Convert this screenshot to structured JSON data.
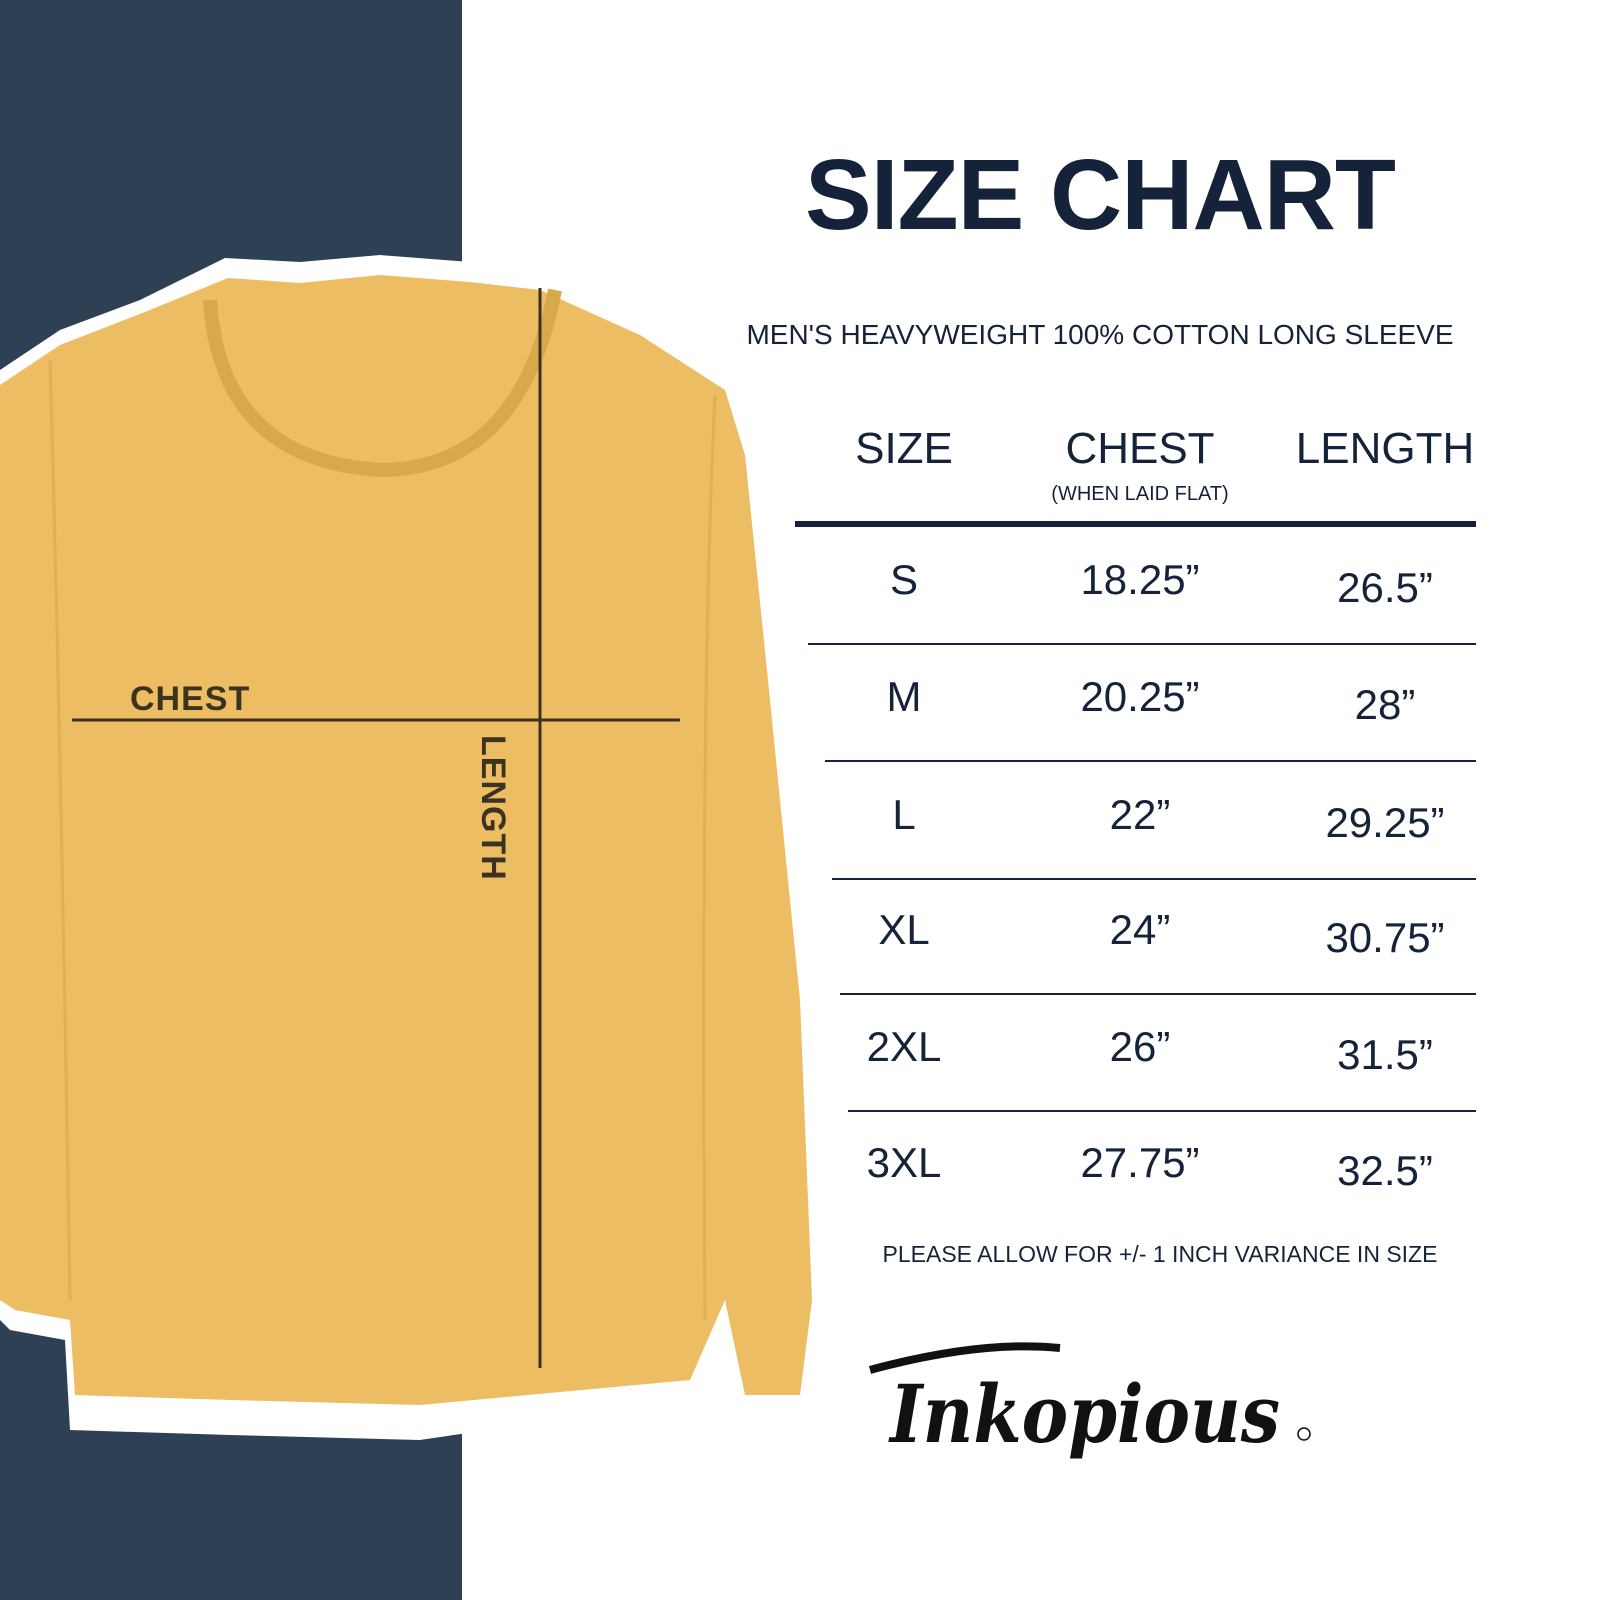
{
  "title": "SIZE CHART",
  "subtitle": "MEN'S HEAVYWEIGHT 100% COTTON LONG SLEEVE",
  "diagram": {
    "chest_label": "CHEST",
    "length_label": "LENGTH",
    "shirt_color": "#ecbd63"
  },
  "table": {
    "headers": {
      "size": "SIZE",
      "chest": "CHEST",
      "chest_note": "(WHEN LAID FLAT)",
      "length": "LENGTH"
    },
    "rows": [
      {
        "size": "S",
        "chest": "18.25”",
        "length": "26.5”"
      },
      {
        "size": "M",
        "chest": "20.25”",
        "length": "28”"
      },
      {
        "size": "L",
        "chest": "22”",
        "length": "29.25”"
      },
      {
        "size": "XL",
        "chest": "24”",
        "length": "30.75”"
      },
      {
        "size": "2XL",
        "chest": "26”",
        "length": "31.5”"
      },
      {
        "size": "3XL",
        "chest": "27.75”",
        "length": "32.5”"
      }
    ]
  },
  "note": "PLEASE ALLOW FOR +/- 1 INCH VARIANCE IN SIZE",
  "brand": {
    "logo_text": "Inkopious"
  },
  "colors": {
    "navy_panel": "#2e4053",
    "text": "#15233a"
  }
}
